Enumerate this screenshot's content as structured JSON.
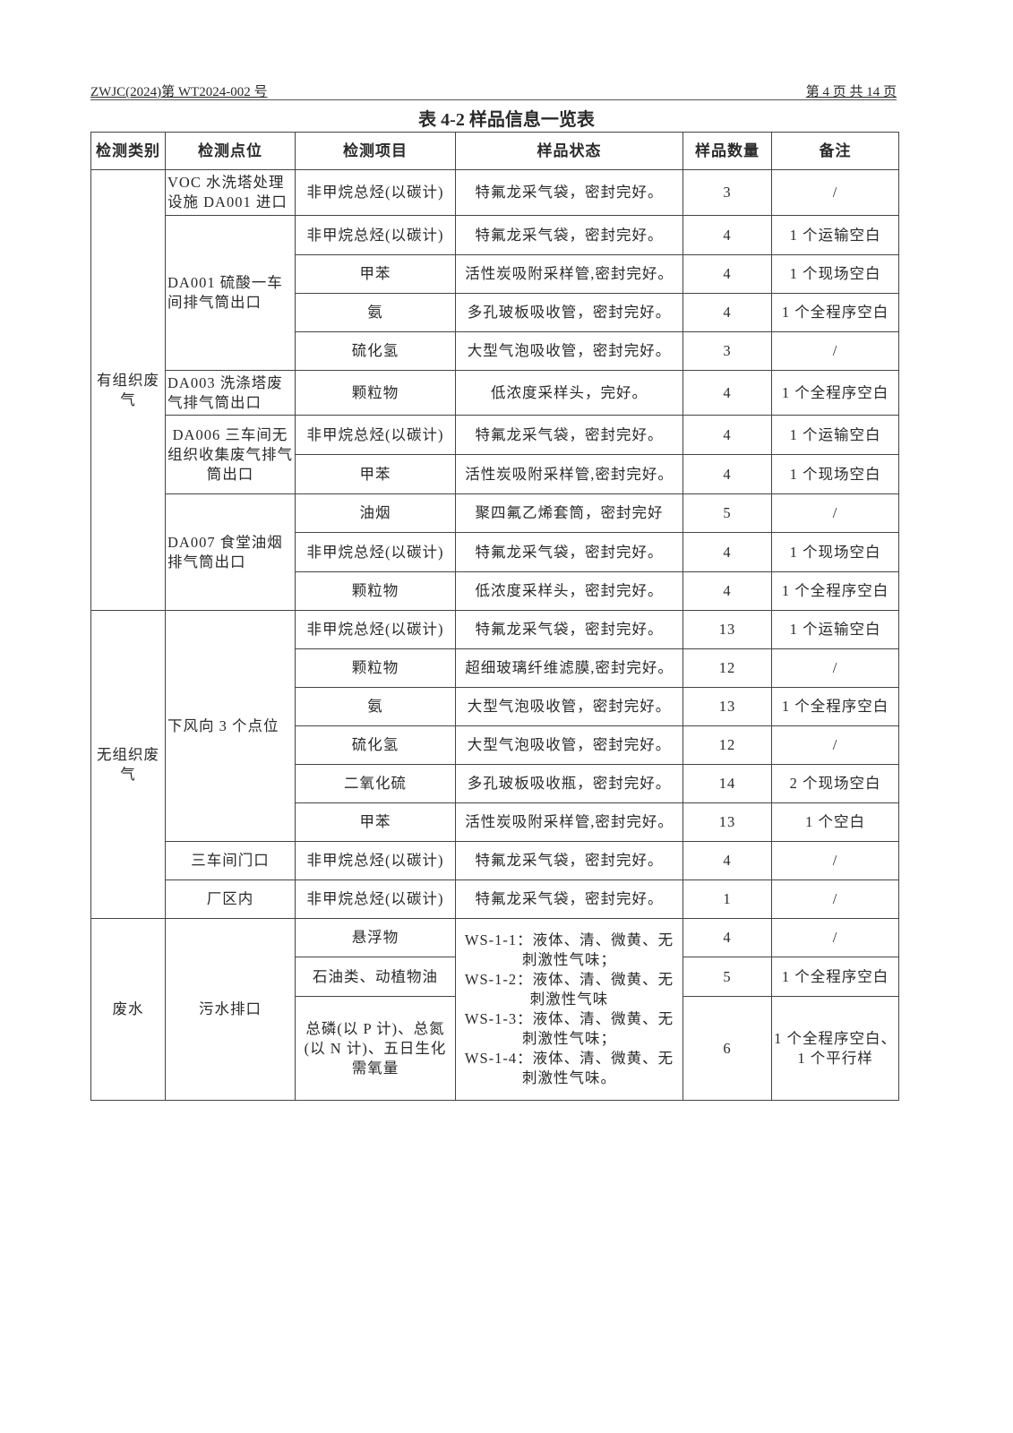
{
  "header": {
    "doc_no": "ZWJC(2024)第 WT2024-002 号",
    "page": "第 4 页 共 14 页"
  },
  "title": "表 4-2 样品信息一览表",
  "columns": [
    "检测类别",
    "检测点位",
    "检测项目",
    "样品状态",
    "样品数量",
    "备注"
  ],
  "categories": [
    "有组织废气",
    "无组织废气",
    "废水"
  ],
  "points": [
    "VOC 水洗塔处理设施 DA001 进口",
    "DA001 硫酸一车间排气筒出口",
    "DA003 洗涤塔废气排气筒出口",
    "DA006 三车间无组织收集废气排气筒出口",
    "DA007 食堂油烟排气筒出口",
    "下风向 3 个点位",
    "三车间门口",
    "厂区内",
    "污水排口"
  ],
  "rows": [
    {
      "item": "非甲烷总烃(以碳计)",
      "state": "特氟龙采气袋，密封完好。",
      "count": "3",
      "note": "/"
    },
    {
      "item": "非甲烷总烃(以碳计)",
      "state": "特氟龙采气袋，密封完好。",
      "count": "4",
      "note": "1 个运输空白"
    },
    {
      "item": "甲苯",
      "state": "活性炭吸附采样管,密封完好。",
      "count": "4",
      "note": "1 个现场空白"
    },
    {
      "item": "氨",
      "state": "多孔玻板吸收管，密封完好。",
      "count": "4",
      "note": "1 个全程序空白"
    },
    {
      "item": "硫化氢",
      "state": "大型气泡吸收管，密封完好。",
      "count": "3",
      "note": "/"
    },
    {
      "item": "颗粒物",
      "state": "低浓度采样头，完好。",
      "count": "4",
      "note": "1 个全程序空白"
    },
    {
      "item": "非甲烷总烃(以碳计)",
      "state": "特氟龙采气袋，密封完好。",
      "count": "4",
      "note": "1 个运输空白"
    },
    {
      "item": "甲苯",
      "state": "活性炭吸附采样管,密封完好。",
      "count": "4",
      "note": "1 个现场空白"
    },
    {
      "item": "油烟",
      "state": "聚四氟乙烯套筒，密封完好",
      "count": "5",
      "note": "/"
    },
    {
      "item": "非甲烷总烃(以碳计)",
      "state": "特氟龙采气袋，密封完好。",
      "count": "4",
      "note": "1 个现场空白"
    },
    {
      "item": "颗粒物",
      "state": "低浓度采样头，密封完好。",
      "count": "4",
      "note": "1 个全程序空白"
    },
    {
      "item": "非甲烷总烃(以碳计)",
      "state": "特氟龙采气袋，密封完好。",
      "count": "13",
      "note": "1 个运输空白"
    },
    {
      "item": "颗粒物",
      "state": "超细玻璃纤维滤膜,密封完好。",
      "count": "12",
      "note": "/"
    },
    {
      "item": "氨",
      "state": "大型气泡吸收管，密封完好。",
      "count": "13",
      "note": "1 个全程序空白"
    },
    {
      "item": "硫化氢",
      "state": "大型气泡吸收管，密封完好。",
      "count": "12",
      "note": "/"
    },
    {
      "item": "二氧化硫",
      "state": "多孔玻板吸收瓶，密封完好。",
      "count": "14",
      "note": "2 个现场空白"
    },
    {
      "item": "甲苯",
      "state": "活性炭吸附采样管,密封完好。",
      "count": "13",
      "note": "1 个空白"
    },
    {
      "item": "非甲烷总烃(以碳计)",
      "state": "特氟龙采气袋，密封完好。",
      "count": "4",
      "note": "/"
    },
    {
      "item": "非甲烷总烃(以碳计)",
      "state": "特氟龙采气袋，密封完好。",
      "count": "1",
      "note": "/"
    },
    {
      "item": "悬浮物",
      "count": "4",
      "note": "/"
    },
    {
      "item": "石油类、动植物油",
      "count": "5",
      "note": "1 个全程序空白"
    },
    {
      "item": "总磷(以 P 计)、总氮(以 N 计)、五日生化需氧量",
      "count": "6",
      "note": "1 个全程序空白、1 个平行样"
    }
  ],
  "water_state": [
    "WS-1-1：液体、清、微黄、无刺激性气味；",
    "WS-1-2：液体、清、微黄、无刺激性气味",
    "WS-1-3：液体、清、微黄、无刺激性气味；",
    "WS-1-4：液体、清、微黄、无刺激性气味。"
  ]
}
